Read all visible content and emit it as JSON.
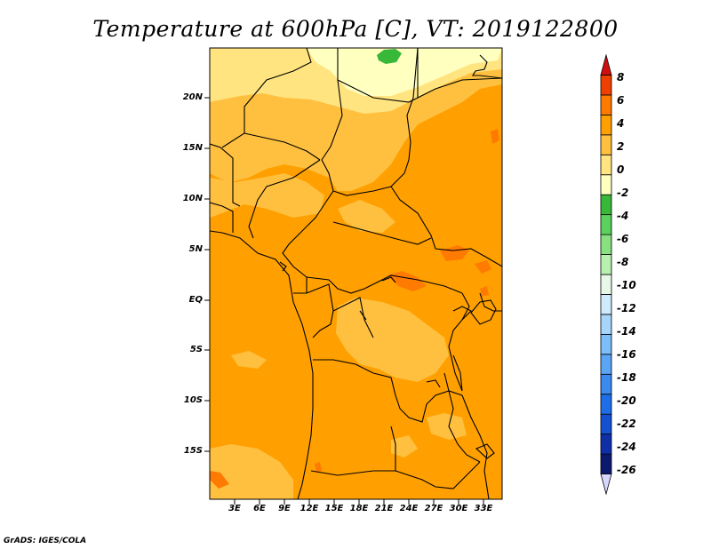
{
  "title": "Temperature at 600hPa [C], VT: 2019122800",
  "credit": "GrADS: IGES/COLA",
  "map": {
    "lat_labels": [
      "20N",
      "15N",
      "10N",
      "5N",
      "EQ",
      "5S",
      "10S",
      "15S"
    ],
    "lon_labels": [
      "3E",
      "6E",
      "9E",
      "12E",
      "15E",
      "18E",
      "21E",
      "24E",
      "27E",
      "30E",
      "33E"
    ]
  },
  "colorbar": {
    "labels": [
      "8",
      "6",
      "4",
      "2",
      "0",
      "-2",
      "-4",
      "-6",
      "-8",
      "-10",
      "-12",
      "-14",
      "-16",
      "-18",
      "-20",
      "-22",
      "-24",
      "-26"
    ],
    "colors": [
      "#d8d8ff",
      "#0b1a6e",
      "#0f2fa8",
      "#1550d0",
      "#1d6ee8",
      "#3a8af0",
      "#5aa5f5",
      "#7cbff8",
      "#a6d6fb",
      "#cfeafd",
      "#e8f8e8",
      "#b8f0b0",
      "#88e080",
      "#5cd05c",
      "#38b838",
      "#ffffc0",
      "#ffe480",
      "#ffc040",
      "#ffa000",
      "#ff7a00",
      "#f04000",
      "#d01010"
    ]
  },
  "regions": {
    "main_color": "#ffa000",
    "light_color": "#ffc040",
    "pale_color": "#ffe480",
    "yellow_color": "#ffffc0",
    "red_color": "#ff7a00",
    "green_color": "#38b838"
  }
}
